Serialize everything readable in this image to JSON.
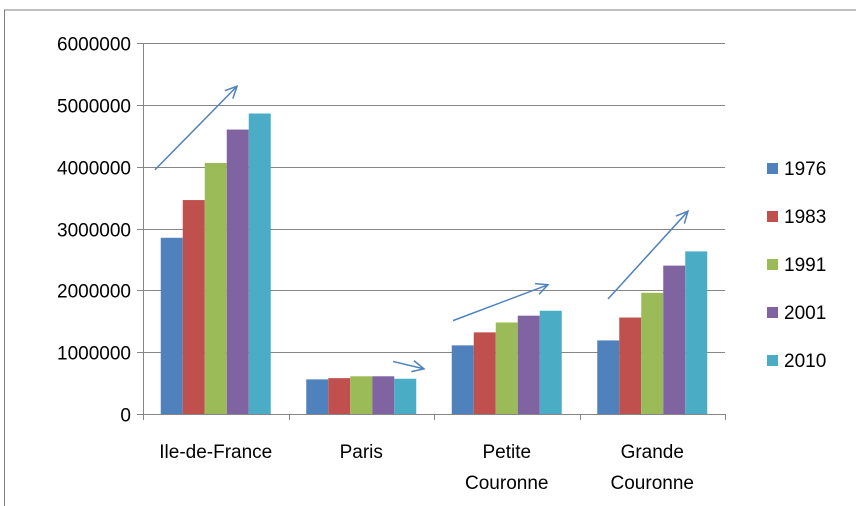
{
  "chart_data": {
    "type": "bar",
    "title": "",
    "xlabel": "",
    "ylabel": "",
    "categories": [
      "Ile-de-France",
      "Paris",
      "Petite Couronne",
      "Grande Couronne"
    ],
    "category_lines": [
      [
        "Ile-de-France"
      ],
      [
        "Paris"
      ],
      [
        "Petite",
        "Couronne"
      ],
      [
        "Grande",
        "Couronne"
      ]
    ],
    "series": [
      {
        "name": "1976",
        "color": "#4F81BD",
        "values": [
          2850000,
          560000,
          1110000,
          1190000
        ]
      },
      {
        "name": "1983",
        "color": "#C0504D",
        "values": [
          3460000,
          580000,
          1320000,
          1560000
        ]
      },
      {
        "name": "1991",
        "color": "#9BBB59",
        "values": [
          4060000,
          610000,
          1480000,
          1960000
        ]
      },
      {
        "name": "2001",
        "color": "#8064A2",
        "values": [
          4600000,
          610000,
          1590000,
          2400000
        ]
      },
      {
        "name": "2010",
        "color": "#4BACC6",
        "values": [
          4860000,
          570000,
          1670000,
          2630000
        ]
      }
    ],
    "ylim": [
      0,
      6000000
    ],
    "yticks": [
      0,
      1000000,
      2000000,
      3000000,
      4000000,
      5000000,
      6000000
    ],
    "ytick_labels": [
      "0",
      "1000000",
      "2000000",
      "3000000",
      "4000000",
      "5000000",
      "6000000"
    ],
    "grid": true,
    "legend_position": "right",
    "annotations": [
      {
        "type": "arrow",
        "category": "Ile-de-France",
        "from_value": 3950000,
        "to_value": 5300000,
        "color": "#4F81BD"
      },
      {
        "type": "arrow",
        "category": "Paris",
        "from_value": 850000,
        "to_value": 730000,
        "color": "#4F81BD"
      },
      {
        "type": "arrow",
        "category": "Petite Couronne",
        "from_value": 1510000,
        "to_value": 2090000,
        "color": "#4F81BD"
      },
      {
        "type": "arrow",
        "category": "Grande Couronne",
        "from_value": 1860000,
        "to_value": 3280000,
        "color": "#4F81BD"
      }
    ]
  }
}
